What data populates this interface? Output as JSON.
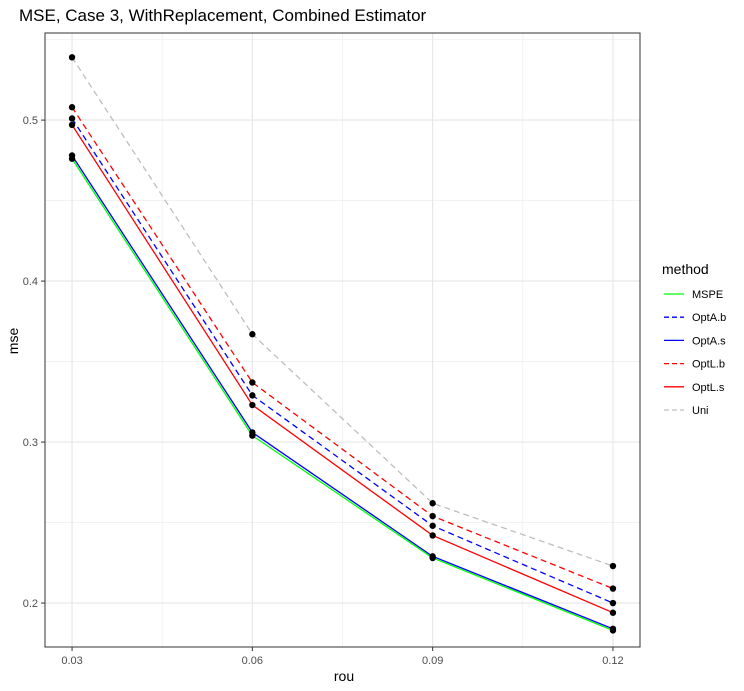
{
  "chart_data": {
    "type": "line",
    "title": "MSE, Case 3, WithReplacement, Combined Estimator",
    "xlabel": "rou",
    "ylabel": "mse",
    "x": [
      0.03,
      0.06,
      0.09,
      0.12
    ],
    "x_ticks": [
      "0.03",
      "0.06",
      "0.09",
      "0.12"
    ],
    "xlim": [
      0.0255,
      0.1245
    ],
    "y_ticks": [
      "0.2",
      "0.3",
      "0.4",
      "0.5"
    ],
    "ylim": [
      0.1727,
      0.5541
    ],
    "grid": true,
    "legend": {
      "title": "method",
      "position": "right"
    },
    "series": [
      {
        "name": "MSPE",
        "color": "#00ff00",
        "dash": "solid",
        "values": [
          0.476,
          0.304,
          0.228,
          0.183
        ]
      },
      {
        "name": "OptA.b",
        "color": "#0000ff",
        "dash": "dashed",
        "values": [
          0.501,
          0.329,
          0.248,
          0.2
        ]
      },
      {
        "name": "OptA.s",
        "color": "#0000ff",
        "dash": "solid",
        "values": [
          0.478,
          0.306,
          0.229,
          0.184
        ]
      },
      {
        "name": "OptL.b",
        "color": "#ff0000",
        "dash": "dashed",
        "values": [
          0.508,
          0.337,
          0.254,
          0.209
        ]
      },
      {
        "name": "OptL.s",
        "color": "#ff0000",
        "dash": "solid",
        "values": [
          0.497,
          0.323,
          0.242,
          0.194
        ]
      },
      {
        "name": "Uni",
        "color": "#bebebe",
        "dash": "dashed",
        "values": [
          0.539,
          0.367,
          0.262,
          0.223
        ]
      }
    ]
  }
}
